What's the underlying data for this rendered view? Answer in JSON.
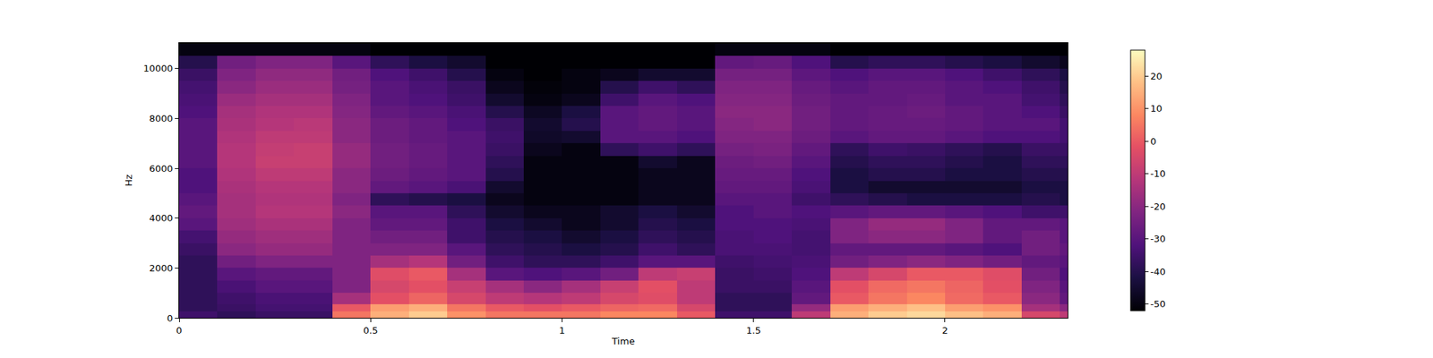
{
  "chart_data": {
    "type": "heatmap",
    "x_label": "Time",
    "y_label": "Hz",
    "x": [
      0.05,
      0.15,
      0.25,
      0.35,
      0.45,
      0.55,
      0.65,
      0.75,
      0.85,
      0.95,
      1.05,
      1.15,
      1.25,
      1.35,
      1.45,
      1.55,
      1.65,
      1.75,
      1.85,
      1.95,
      2.05,
      2.15,
      2.25,
      2.35
    ],
    "y": [
      125,
      375,
      750,
      1250,
      1750,
      2250,
      2750,
      3250,
      3750,
      4250,
      4750,
      5250,
      5750,
      6250,
      6750,
      7250,
      7750,
      8250,
      8750,
      9250,
      9750,
      10250,
      10750
    ],
    "z": [
      [
        -35,
        -38,
        -36,
        -36,
        5,
        15,
        20,
        10,
        5,
        5,
        5,
        8,
        8,
        0,
        -35,
        -35,
        -10,
        15,
        20,
        22,
        18,
        15,
        -5,
        -10
      ],
      [
        -38,
        -36,
        -34,
        -34,
        0,
        12,
        15,
        5,
        0,
        -2,
        0,
        2,
        3,
        -5,
        -38,
        -38,
        -18,
        12,
        15,
        18,
        12,
        10,
        -15,
        -20
      ],
      [
        -38,
        -35,
        -33,
        -33,
        -15,
        -2,
        2,
        -5,
        -10,
        -12,
        -10,
        -5,
        -3,
        -10,
        -38,
        -38,
        -28,
        0,
        5,
        8,
        3,
        0,
        -20,
        -28
      ],
      [
        -38,
        -33,
        -30,
        -30,
        -22,
        -5,
        -2,
        -8,
        -15,
        -20,
        -15,
        -8,
        -2,
        -10,
        -36,
        -36,
        -30,
        -2,
        3,
        5,
        2,
        -2,
        -22,
        -30
      ],
      [
        -38,
        -30,
        -28,
        -28,
        -22,
        -3,
        0,
        -15,
        -30,
        -32,
        -30,
        -25,
        -10,
        -8,
        -36,
        -35,
        -32,
        -10,
        -5,
        0,
        0,
        -3,
        -25,
        -32
      ],
      [
        -38,
        -25,
        -22,
        -22,
        -22,
        -15,
        -12,
        -25,
        -35,
        -38,
        -38,
        -35,
        -30,
        -30,
        -35,
        -34,
        -33,
        -25,
        -22,
        -20,
        -22,
        -25,
        -28,
        -30
      ],
      [
        -36,
        -20,
        -18,
        -18,
        -22,
        -22,
        -22,
        -30,
        -38,
        -40,
        -42,
        -40,
        -35,
        -38,
        -33,
        -33,
        -34,
        -28,
        -28,
        -28,
        -30,
        -32,
        -25,
        -28
      ],
      [
        -34,
        -18,
        -16,
        -16,
        -22,
        -25,
        -25,
        -35,
        -40,
        -42,
        -45,
        -42,
        -38,
        -40,
        -33,
        -32,
        -34,
        -22,
        -20,
        -20,
        -22,
        -28,
        -25,
        -30
      ],
      [
        -30,
        -16,
        -14,
        -14,
        -22,
        -28,
        -28,
        -35,
        -42,
        -45,
        -48,
        -45,
        -40,
        -42,
        -32,
        -32,
        -33,
        -22,
        -18,
        -18,
        -22,
        -28,
        -28,
        -30
      ],
      [
        -28,
        -15,
        -12,
        -12,
        -20,
        -30,
        -30,
        -38,
        -45,
        -48,
        -48,
        -45,
        -42,
        -45,
        -32,
        -30,
        -32,
        -30,
        -28,
        -28,
        -30,
        -32,
        -35,
        -35
      ],
      [
        -30,
        -15,
        -13,
        -13,
        -22,
        -38,
        -40,
        -42,
        -48,
        -50,
        -50,
        -50,
        -48,
        -48,
        -30,
        -30,
        -35,
        -38,
        -40,
        -42,
        -42,
        -42,
        -40,
        -42
      ],
      [
        -32,
        -14,
        -12,
        -12,
        -20,
        -28,
        -30,
        -33,
        -45,
        -50,
        -50,
        -50,
        -48,
        -48,
        -28,
        -28,
        -33,
        -42,
        -45,
        -45,
        -45,
        -45,
        -42,
        -42
      ],
      [
        -32,
        -13,
        -10,
        -10,
        -20,
        -26,
        -28,
        -30,
        -40,
        -50,
        -50,
        -50,
        -48,
        -48,
        -27,
        -27,
        -32,
        -42,
        -40,
        -40,
        -42,
        -42,
        -40,
        -40
      ],
      [
        -30,
        -12,
        -8,
        -8,
        -18,
        -25,
        -27,
        -30,
        -38,
        -50,
        -50,
        -50,
        -45,
        -48,
        -26,
        -25,
        -30,
        -40,
        -38,
        -38,
        -40,
        -42,
        -38,
        -38
      ],
      [
        -30,
        -12,
        -9,
        -8,
        -18,
        -25,
        -27,
        -30,
        -36,
        -48,
        -50,
        -38,
        -35,
        -38,
        -24,
        -23,
        -28,
        -38,
        -35,
        -36,
        -38,
        -40,
        -36,
        -36
      ],
      [
        -30,
        -13,
        -10,
        -10,
        -20,
        -26,
        -28,
        -30,
        -35,
        -46,
        -45,
        -30,
        -30,
        -32,
        -22,
        -22,
        -26,
        -30,
        -28,
        -28,
        -30,
        -32,
        -32,
        -34
      ],
      [
        -30,
        -14,
        -12,
        -11,
        -20,
        -26,
        -28,
        -32,
        -36,
        -45,
        -40,
        -30,
        -28,
        -30,
        -21,
        -20,
        -25,
        -28,
        -27,
        -27,
        -28,
        -30,
        -30,
        -34
      ],
      [
        -32,
        -15,
        -13,
        -13,
        -21,
        -28,
        -30,
        -33,
        -40,
        -47,
        -42,
        -30,
        -28,
        -30,
        -20,
        -20,
        -25,
        -28,
        -27,
        -26,
        -28,
        -30,
        -32,
        -36
      ],
      [
        -33,
        -17,
        -15,
        -15,
        -22,
        -30,
        -32,
        -35,
        -45,
        -50,
        -48,
        -35,
        -30,
        -32,
        -21,
        -21,
        -26,
        -28,
        -28,
        -27,
        -30,
        -30,
        -34,
        -38
      ],
      [
        -34,
        -20,
        -17,
        -17,
        -24,
        -30,
        -33,
        -36,
        -48,
        -51,
        -50,
        -40,
        -35,
        -38,
        -22,
        -22,
        -27,
        -30,
        -28,
        -28,
        -30,
        -32,
        -35,
        -40
      ],
      [
        -36,
        -22,
        -19,
        -19,
        -25,
        -32,
        -35,
        -40,
        -50,
        -52,
        -50,
        -48,
        -45,
        -45,
        -24,
        -24,
        -29,
        -32,
        -30,
        -30,
        -32,
        -35,
        -38,
        -42
      ],
      [
        -40,
        -25,
        -22,
        -22,
        -30,
        -38,
        -42,
        -45,
        -52,
        -52,
        -52,
        -52,
        -52,
        -52,
        -28,
        -27,
        -32,
        -40,
        -38,
        -38,
        -40,
        -42,
        -45,
        -48
      ],
      [
        -50,
        -50,
        -50,
        -50,
        -50,
        -52,
        -52,
        -52,
        -53,
        -53,
        -53,
        -53,
        -53,
        -53,
        -50,
        -50,
        -50,
        -52,
        -52,
        -52,
        -52,
        -52,
        -52,
        -52
      ]
    ],
    "xlim": [
      0,
      2.32
    ],
    "xticks": [
      0,
      0.5,
      1,
      1.5,
      2
    ],
    "ylim": [
      0,
      11025
    ],
    "yticks": [
      0,
      2000,
      4000,
      6000,
      8000,
      10000
    ],
    "colorbar": {
      "range": [
        -52,
        28
      ],
      "ticks": [
        -50,
        -40,
        -30,
        -20,
        -10,
        0,
        10,
        20
      ]
    }
  }
}
